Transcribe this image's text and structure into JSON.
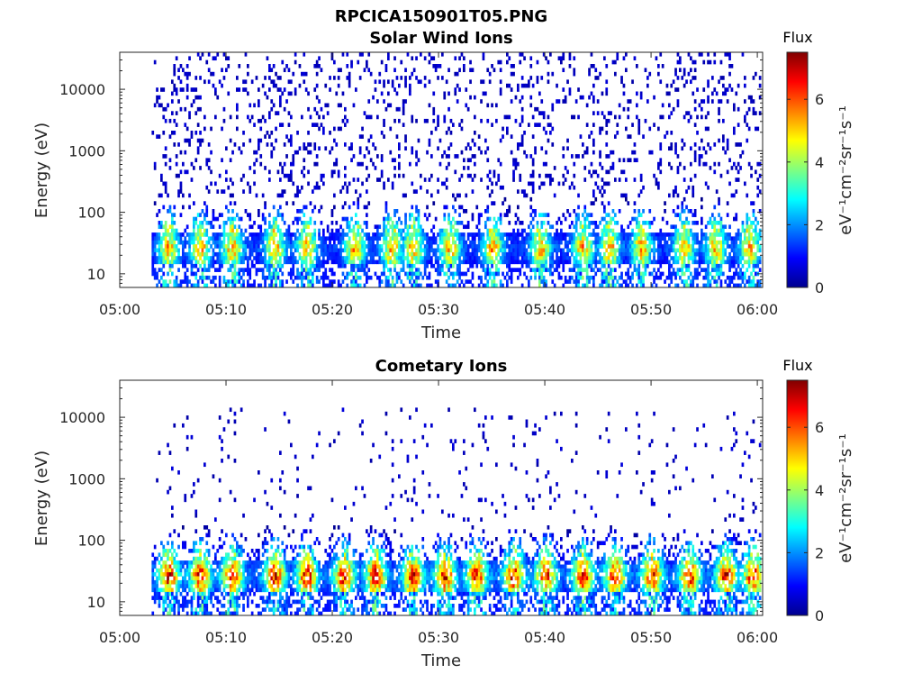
{
  "figure_title": "RPCICA150901T05.PNG",
  "chart_data": [
    {
      "type": "heatmap",
      "title": "Solar Wind Ions",
      "xlabel": "Time",
      "ylabel": "Energy (eV)",
      "x_ticks": [
        "05:00",
        "05:10",
        "05:20",
        "05:30",
        "05:40",
        "05:50",
        "06:00"
      ],
      "xlim_minutes": [
        0,
        60.5
      ],
      "y_scale": "log",
      "y_ticks": [
        10,
        100,
        1000,
        10000
      ],
      "ylim": [
        6,
        40000
      ],
      "data_start_minute": 3,
      "colorbar": {
        "title": "Flux",
        "label": "eV⁻¹cm⁻²sr⁻¹s⁻¹",
        "ticks": [
          0,
          2,
          4,
          6
        ],
        "range": [
          0,
          7.5
        ],
        "colormap": "jet"
      },
      "features": {
        "core_band_energy_eV": [
          15,
          45
        ],
        "peak_flux": 5.5,
        "high_energy_scatter_eV": [
          100,
          40000
        ],
        "scatter_flux": 0.5,
        "pulse_minutes": [
          4.5,
          7.5,
          10.5,
          14.5,
          17.5,
          22,
          25.5,
          27.5,
          31,
          35,
          39.5,
          43.5,
          46,
          49,
          53,
          56,
          59.2
        ]
      }
    },
    {
      "type": "heatmap",
      "title": "Cometary Ions",
      "xlabel": "Time",
      "ylabel": "Energy (eV)",
      "x_ticks": [
        "05:00",
        "05:10",
        "05:20",
        "05:30",
        "05:40",
        "05:50",
        "06:00"
      ],
      "xlim_minutes": [
        0,
        60.5
      ],
      "y_scale": "log",
      "y_ticks": [
        10,
        100,
        1000,
        10000
      ],
      "ylim": [
        6,
        40000
      ],
      "data_start_minute": 3,
      "colorbar": {
        "title": "Flux",
        "label": "eV⁻¹cm⁻²sr⁻¹s⁻¹",
        "ticks": [
          0,
          2,
          4,
          6
        ],
        "range": [
          0,
          7.5
        ],
        "colormap": "jet"
      },
      "features": {
        "core_band_energy_eV": [
          15,
          45
        ],
        "peak_flux": 6.8,
        "high_energy_scatter_eV": [
          200,
          15000
        ],
        "scatter_flux": 0.5,
        "pulse_minutes": [
          4.5,
          7.5,
          10.5,
          14.5,
          17.5,
          21,
          24,
          27.5,
          30.5,
          33.5,
          37,
          40,
          43.5,
          46.5,
          50,
          53.5,
          57,
          59.5
        ]
      }
    }
  ]
}
